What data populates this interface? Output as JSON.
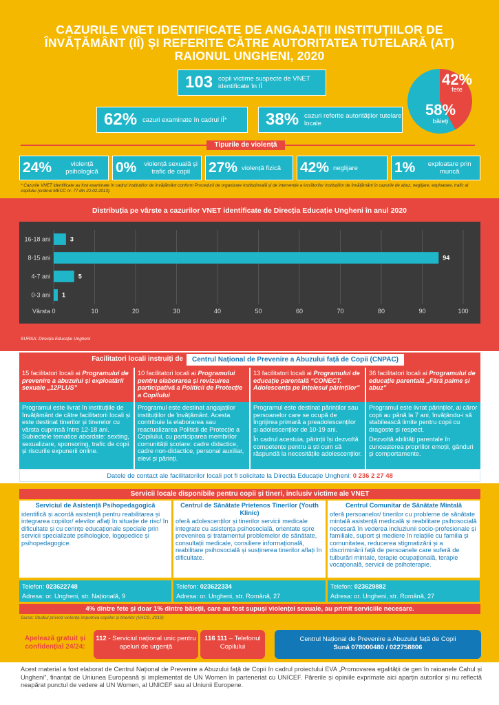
{
  "title": {
    "line1": "CAZURILE VNET IDENTIFICATE DE ANGAJAȚII INSTITUȚIILOR DE",
    "line2": "ÎNVĂȚĂMÂNT (IÎ) ȘI REFERITE CĂTRE AUTORITATEA TUTELARĂ (AT)",
    "line3": "RAIONUL UNGHENI, 2020"
  },
  "stats": {
    "total": {
      "value": "103",
      "label": "copii victime suspecte de VNET identificate în IÎ"
    },
    "examined": {
      "value": "62%",
      "label": "cazuri examinate în cadrul IÎ*"
    },
    "referred": {
      "value": "38%",
      "label": "cazuri referite autorităților tutelare locale"
    },
    "girls": {
      "value": "42%",
      "label": "fete",
      "fraction": 0.42
    },
    "boys": {
      "value": "58%",
      "label": "băieți"
    }
  },
  "violence": {
    "title": "Tipurile de violență",
    "items": [
      {
        "value": "24%",
        "label": "violență psihologică"
      },
      {
        "value": "0%",
        "label": "violență sexuală și trafic de copii"
      },
      {
        "value": "27%",
        "label": "violență fizică"
      },
      {
        "value": "42%",
        "label": "neglijare"
      },
      {
        "value": "1%",
        "label": "exploatare prin muncă"
      }
    ]
  },
  "footnote": "* Cazurile VNET identificate au fost examinate în cadrul instituțiilor de învățământ conform Procedurii de organizare instituțională și de intervenție a lucrătorilor instituțiilor de învățământ în cazurile de abuz, neglijare, exploatare, trafic al copilului (ordinul MECC nr. 77 din 22.02.2013).",
  "chart_data": {
    "type": "bar",
    "orientation": "horizontal",
    "title": "Distribuția pe vârste a cazurilor VNET identificate de Direcția Educație Ungheni în anul 2020",
    "categories": [
      "16-18 ani",
      "8-15 ani",
      "4-7 ani",
      "0-3 ani"
    ],
    "values": [
      3,
      94,
      5,
      1
    ],
    "xlabel": "Vârsta",
    "xlim": [
      0,
      100
    ],
    "xticks": [
      0,
      10,
      20,
      30,
      40,
      50,
      60,
      70,
      80,
      90,
      100
    ],
    "grid": true,
    "bar_color": "#1fb6c9",
    "background": "#3a3a3a"
  },
  "chart_source": "SURSA: Direcția Educație Ungheni",
  "facilitators": {
    "header_label": "Facilitatori locali instruiți de",
    "header_org": "Centrul Național de Prevenire a Abuzului față de Copii (CNPAC)",
    "columns": [
      {
        "top_prefix": "15 facilitatori locali ai ",
        "top_program": "Programului de prevenire a abuzului și exploatării sexuale „12PLUS”",
        "body1": "Programul este livrat în instituțiile de învățământ de către facilitatorii locali și este destinat tinerilor și tinerelor cu vârsta cuprinsă între 12-18 ani. Subiectele tematice abordate: sexting, sexualizare, sponsoring, trafic de copii și riscurile expunerii online.",
        "body2": ""
      },
      {
        "top_prefix": "10 facilitatori locali ai ",
        "top_program": "Programului pentru elaborarea și revizuirea participativă a Politicii de Protecție a Copilului",
        "body1": "Programul este destinat angajaților instituțiilor de învățământ. Acesta contribuie la elaborarea sau reactualizarea Politicii de Protecție a Copilului, cu participarea membrilor comunității școlare: cadre didactice, cadre non-didactice, personal auxiliar, elevi și părinți.",
        "body2": ""
      },
      {
        "top_prefix": "13 facilitatori locali ai ",
        "top_program": "Programului de educație parentală “CONECT. Adolescența pe înțelesul părinților”",
        "body1": "Programul este destinat părinților sau persoanelor care se ocupă de îngrijirea primară a preadolescenților și adolescenților de 10-19 ani.",
        "body2": "În cadrul acestuia, părinții își dezvoltă competențe pentru a ști cum să răspundă la necesitățile adolescenților."
      },
      {
        "top_prefix": "36 facilitatori locali ai ",
        "top_program": "Programului de educație parentală „Fără palme și abuz”",
        "body1": "Programul este livrat părinților, ai căror copii au până la 7 ani, învățându-i să stabilească limite pentru copii cu dragoste și respect.",
        "body2": "Dezvoltă abilități parentale în cunoașterea propriilor emoții, gânduri și comportamente."
      }
    ],
    "contact_text": "Datele de contact ale facilitatorilor locali pot fi solicitate la Direcția Educație Ungheni: ",
    "contact_phone": "0 236 2 27 48"
  },
  "services": {
    "title": "Servicii locale disponibile pentru copii și tineri, inclusiv victime ale VNET",
    "items": [
      {
        "name": "Serviciul de Asistență Psihopedagogică",
        "desc": "identifică și acordă asistență pentru reabilitarea și integrarea copiilor/ elevilor aflați în situație de risc/ în dificultate și cu cerințe educaționale speciale prin servicii specializate psihologice, logopedice și psihopedagogice.",
        "phone_label": "Telefon: ",
        "phone": "023622748",
        "address": "Adresa: or. Ungheni, str. Națională, 9"
      },
      {
        "name": "Centrul de Sănătate Prietenos Tinerilor (Youth Klinic)",
        "desc": "oferă adolescenților și tinerilor servicii medicale integrate cu asistența psihosocială, orientate spre prevenirea și tratamentul problemelor de sănătate, consultații medicale, consiliere informațională, reabilitare psihosocială și susținerea tinerilor aflați în dificultate.",
        "phone_label": "Telefon: ",
        "phone": "023622334",
        "address": "Adresa: or. Ungheni, str. Română, 27"
      },
      {
        "name": "Centrul Comunitar de Sănătate Mintală",
        "desc": "oferă persoanelor/ tinerilor cu probleme de sănătate mintală asistență medicală și reabilitare psihosocială necesară în vederea incluziunii socio-profesionale și familiale, suport și mediere în relațiile cu familia și comunitatea, reducerea stigmatizării și a discriminării față de persoanele care suferă de tulburări mintale, terapie ocupațională, terapie vocațională, servicii de psihoterapie.",
        "phone_label": "Telefon: ",
        "phone": "023629882",
        "address": "Adresa: or. Ungheni, str. Română, 27"
      }
    ],
    "vacs_text": "4% dintre fete și doar 1% dintre băieții, care au fost supuși violenței sexuale, au primit serviciile necesare.",
    "vacs_source": "Sursa: Studiul privind violența împotriva copiilor și tinerilor (VACS, 2019)"
  },
  "hotlines": {
    "label": "Apelează gratuit și confidențial 24/24:",
    "h112_num": "112",
    "h112_text": " - Serviciul național unic pentru apeluri de urgență",
    "h116_num": "116 111",
    "h116_text": " – Telefonul Copilului",
    "cnpac_line1": "Centrul Național de Prevenire a  Abuzului față de Copii",
    "cnpac_line2": "Sună 078000480 / 022758806"
  },
  "disclaimer": "Acest material a fost elaborat de Centrul Național de Prevenire a Abuzului față de Copii în cadrul proiectului EVA „Promovarea egalității de gen în raioanele Cahul și Ungheni”, finanțat de Uniunea Europeană și implementat de UN Women în parteneriat cu UNICEF. Părerile și opiniile exprimate aici aparțin autorilor și nu reflectă neapărat punctul de vedere al UN Women, al UNICEF sau al Uniunii Europene."
}
